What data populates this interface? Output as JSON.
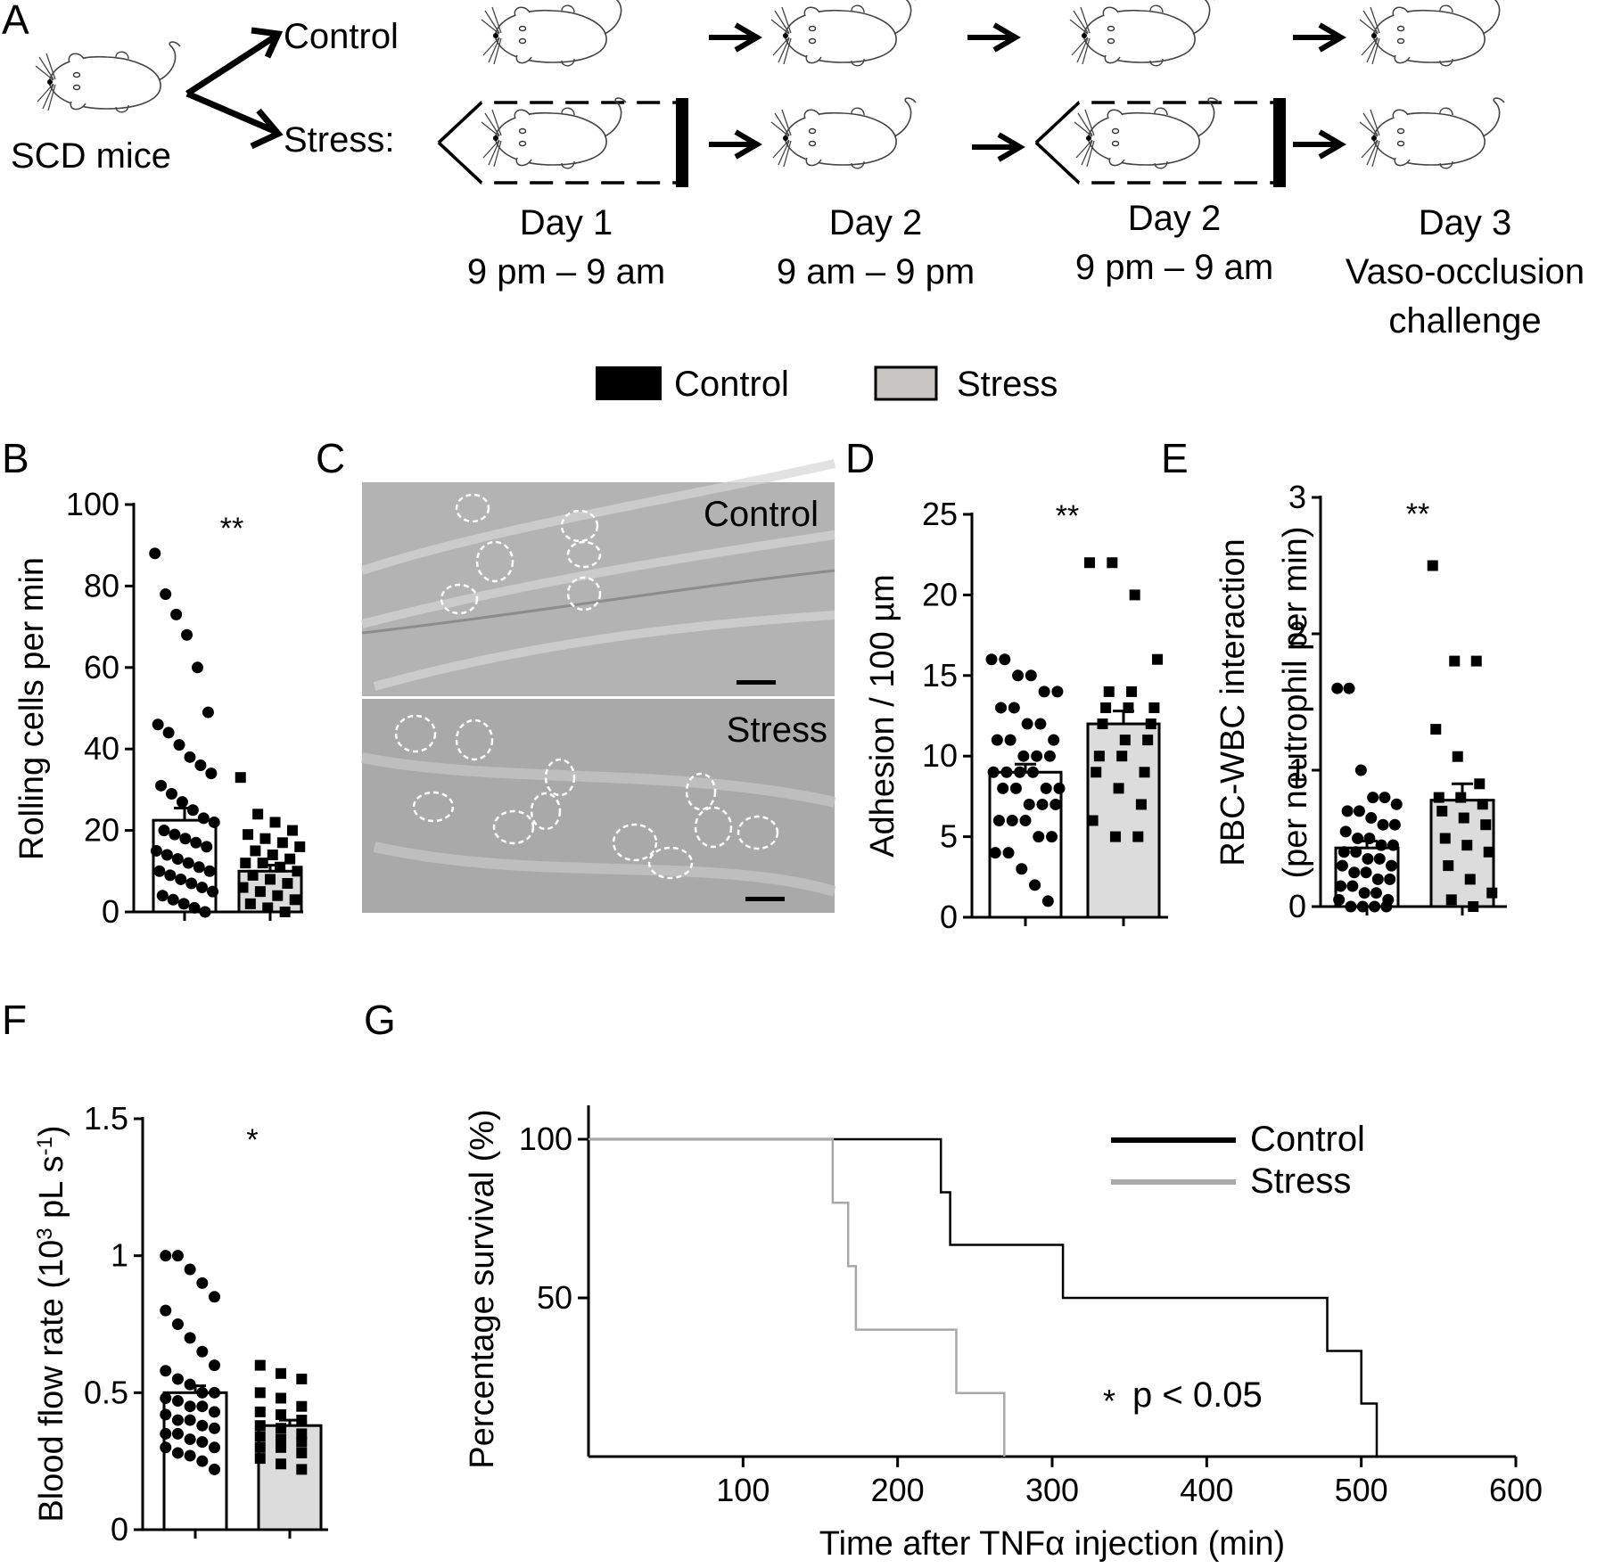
{
  "panel_letters": [
    "A",
    "B",
    "C",
    "D",
    "E",
    "F",
    "G"
  ],
  "schematic": {
    "start_label": "SCD mice",
    "group_labels": [
      "Control",
      "Stress:"
    ],
    "time_labels": [
      [
        "Day 1",
        "9 pm – 9 am"
      ],
      [
        "Day 2",
        "9 am – 9 pm"
      ],
      [
        "Day 2",
        "9 pm – 9 am"
      ],
      [
        "Day 3",
        "Vaso-occlusion",
        "challenge"
      ]
    ]
  },
  "legend": {
    "items": [
      {
        "label": "Control",
        "color": "#000000"
      },
      {
        "label": "Stress",
        "color": "#c8c5c5"
      }
    ]
  },
  "micrograph": {
    "labels": [
      "Control",
      "Stress"
    ]
  },
  "chart_data": [
    {
      "panel": "B",
      "type": "bar",
      "categories": [
        "Control",
        "Stress"
      ],
      "ylabel": "Rolling cells per min",
      "ylim": [
        0,
        100
      ],
      "yticks": [
        "0",
        "20",
        "40",
        "60",
        "80",
        "100"
      ],
      "significance": "**",
      "series": [
        {
          "name": "Control",
          "mean": 22.5,
          "sem": 3,
          "points": [
            88,
            78,
            73,
            68,
            60,
            49,
            46,
            44,
            41,
            38,
            36,
            34,
            31,
            29,
            27,
            25,
            23,
            22,
            20,
            19,
            18,
            17,
            16,
            15,
            14,
            13,
            12,
            11,
            10,
            10,
            9,
            8,
            7,
            6,
            5,
            4,
            3,
            2,
            1,
            0
          ]
        },
        {
          "name": "Stress",
          "mean": 10,
          "sem": 1.5,
          "points": [
            33,
            24,
            22,
            20,
            19,
            18,
            17,
            16,
            15,
            14,
            13,
            12,
            12,
            11,
            10,
            9,
            8,
            7,
            6,
            5,
            4,
            3,
            2,
            1,
            0
          ]
        }
      ]
    },
    {
      "panel": "D",
      "type": "bar",
      "categories": [
        "Control",
        "Stress"
      ],
      "ylabel": "Adhesion / 100 µm",
      "ylim": [
        0,
        25
      ],
      "yticks": [
        "0",
        "5",
        "10",
        "15",
        "20",
        "25"
      ],
      "significance": "**",
      "series": [
        {
          "name": "Control",
          "mean": 9,
          "sem": 0.5,
          "points": [
            16,
            16,
            15,
            15,
            14,
            14,
            13,
            13,
            12,
            12,
            11,
            11,
            11,
            10,
            10,
            10,
            9,
            9,
            9,
            9,
            8,
            8,
            8,
            8,
            7,
            7,
            7,
            6,
            6,
            6,
            5,
            5,
            4,
            4,
            3,
            2,
            1
          ]
        },
        {
          "name": "Stress",
          "mean": 12,
          "sem": 0.8,
          "points": [
            22,
            22,
            20,
            16,
            14,
            14,
            13,
            13,
            13,
            12,
            12,
            11,
            11,
            10,
            10,
            9,
            9,
            8,
            7,
            6,
            5,
            5
          ]
        }
      ]
    },
    {
      "panel": "E",
      "type": "bar",
      "categories": [
        "Control",
        "Stress"
      ],
      "ylabel": "RBC-WBC interaction",
      "ylabel2": "(per neutrophil per min)",
      "ylim": [
        0,
        3
      ],
      "yticks": [
        "0",
        "1",
        "2",
        "3"
      ],
      "significance": "**",
      "series": [
        {
          "name": "Control",
          "mean": 0.43,
          "sem": 0.05,
          "points": [
            1.6,
            1.6,
            1.0,
            0.8,
            0.8,
            0.75,
            0.7,
            0.7,
            0.65,
            0.6,
            0.6,
            0.55,
            0.5,
            0.5,
            0.45,
            0.45,
            0.4,
            0.4,
            0.35,
            0.35,
            0.3,
            0.3,
            0.25,
            0.25,
            0.2,
            0.2,
            0.15,
            0.15,
            0.1,
            0.1,
            0.05,
            0.05,
            0.0,
            0.0,
            0.0,
            0.0
          ]
        },
        {
          "name": "Stress",
          "mean": 0.78,
          "sem": 0.12,
          "points": [
            2.5,
            1.8,
            1.8,
            1.3,
            1.1,
            0.9,
            0.8,
            0.8,
            0.75,
            0.7,
            0.65,
            0.6,
            0.5,
            0.45,
            0.4,
            0.3,
            0.2,
            0.1,
            0.05,
            0.0
          ]
        }
      ]
    },
    {
      "panel": "F",
      "type": "bar",
      "categories": [
        "Control",
        "Stress"
      ],
      "ylabel": "Blood flow rate (10",
      "ylabel_sup1": "3",
      "ylabel_mid": " pL s",
      "ylabel_sup2": "-1",
      "ylabel_end": ")",
      "ylim": [
        0,
        1.5
      ],
      "yticks": [
        "0",
        "0.5",
        "1",
        "1.5"
      ],
      "significance": "*",
      "series": [
        {
          "name": "Control",
          "mean": 0.5,
          "sem": 0.025,
          "points": [
            1.0,
            1.0,
            0.95,
            0.9,
            0.85,
            0.8,
            0.75,
            0.7,
            0.65,
            0.6,
            0.58,
            0.55,
            0.53,
            0.5,
            0.5,
            0.48,
            0.47,
            0.45,
            0.45,
            0.43,
            0.42,
            0.4,
            0.4,
            0.38,
            0.37,
            0.35,
            0.35,
            0.33,
            0.32,
            0.3,
            0.3,
            0.28,
            0.27,
            0.25,
            0.22
          ]
        },
        {
          "name": "Stress",
          "mean": 0.38,
          "sem": 0.02,
          "points": [
            0.6,
            0.57,
            0.55,
            0.5,
            0.48,
            0.45,
            0.43,
            0.42,
            0.4,
            0.38,
            0.37,
            0.35,
            0.34,
            0.33,
            0.32,
            0.3,
            0.3,
            0.28,
            0.26,
            0.24,
            0.22
          ]
        }
      ]
    },
    {
      "panel": "G",
      "type": "line",
      "subtype": "kaplan-meier",
      "xlabel": "Time after TNFα injection (min)",
      "ylabel": "Percentage survival (%)",
      "xlim": [
        0,
        600
      ],
      "ylim": [
        0,
        100
      ],
      "xticks": [
        "100",
        "200",
        "300",
        "400",
        "500",
        "600"
      ],
      "yticks": [
        "50",
        "100"
      ],
      "annotation": {
        "star": "*",
        "text": "p < 0.05"
      },
      "series": [
        {
          "name": "Control",
          "color": "#000000",
          "steps": [
            [
              0,
              100
            ],
            [
              228,
              100
            ],
            [
              228,
              83.3
            ],
            [
              234,
              83.3
            ],
            [
              234,
              66.7
            ],
            [
              307,
              66.7
            ],
            [
              307,
              50
            ],
            [
              478,
              50
            ],
            [
              478,
              33.3
            ],
            [
              500,
              33.3
            ],
            [
              500,
              16.7
            ],
            [
              510,
              16.7
            ],
            [
              510,
              0
            ]
          ]
        },
        {
          "name": "Stress",
          "color": "#a8a8a8",
          "steps": [
            [
              0,
              100
            ],
            [
              158,
              100
            ],
            [
              158,
              80
            ],
            [
              168,
              80
            ],
            [
              168,
              60
            ],
            [
              173,
              60
            ],
            [
              173,
              40
            ],
            [
              238,
              40
            ],
            [
              238,
              20
            ],
            [
              269,
              20
            ],
            [
              269,
              0
            ]
          ]
        }
      ]
    }
  ]
}
